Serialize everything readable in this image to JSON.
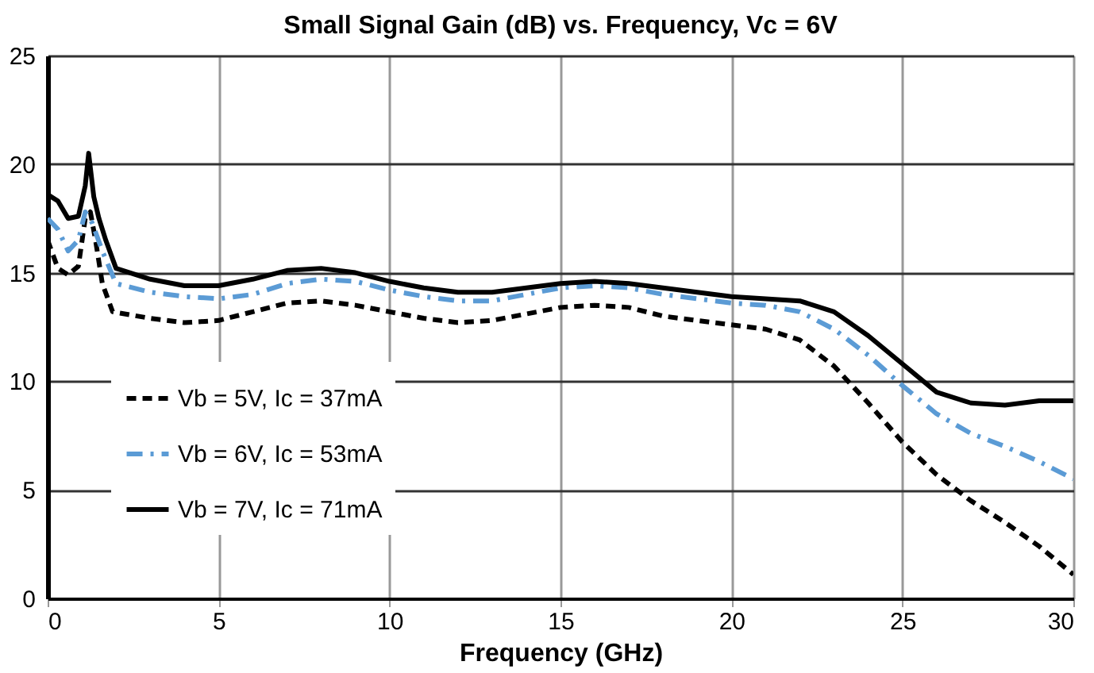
{
  "chart_data": {
    "type": "line",
    "title": "Small Signal Gain (dB) vs. Frequency, Vc = 6V",
    "xlabel": "Frequency (GHz)",
    "xlim": [
      0,
      30
    ],
    "xticks": [
      0,
      5,
      10,
      15,
      20,
      25,
      30
    ],
    "ylim": [
      0,
      25
    ],
    "yticks": [
      0,
      5,
      10,
      15,
      20,
      25
    ],
    "grid": true,
    "legend": "bottom left",
    "marker": "none",
    "series": [
      {
        "name": "Vb = 5V, Ic = 37mA",
        "color": "#000000",
        "line_style": "dashed",
        "x": [
          0,
          0.3,
          0.6,
          0.9,
          1.1,
          1.25,
          1.4,
          1.6,
          1.9,
          3,
          4,
          5,
          6,
          7,
          8,
          9,
          10,
          11,
          12,
          13,
          14,
          15,
          16,
          17,
          18,
          19,
          20,
          21,
          22,
          23,
          24,
          25,
          26,
          27,
          28,
          29,
          30
        ],
        "values": [
          16.5,
          15.2,
          14.9,
          15.3,
          17.5,
          17.8,
          16.5,
          14.5,
          13.2,
          12.9,
          12.7,
          12.8,
          13.2,
          13.6,
          13.7,
          13.5,
          13.2,
          12.9,
          12.7,
          12.8,
          13.1,
          13.4,
          13.5,
          13.4,
          13.0,
          12.8,
          12.6,
          12.4,
          11.9,
          10.7,
          9.0,
          7.2,
          5.7,
          4.5,
          3.5,
          2.4,
          1.1
        ]
      },
      {
        "name": "Vb = 6V, Ic = 53mA",
        "color": "#5b9bd5",
        "line_style": "dashdot",
        "x": [
          0,
          0.3,
          0.6,
          0.9,
          1.1,
          1.3,
          1.6,
          2,
          3,
          4,
          5,
          6,
          7,
          8,
          9,
          10,
          11,
          12,
          13,
          14,
          15,
          16,
          17,
          18,
          19,
          20,
          21,
          22,
          23,
          24,
          25,
          26,
          27,
          28,
          29,
          30
        ],
        "values": [
          17.5,
          17.0,
          16.0,
          16.5,
          17.8,
          17.3,
          16.0,
          14.5,
          14.1,
          13.9,
          13.8,
          14.0,
          14.5,
          14.7,
          14.6,
          14.2,
          13.9,
          13.7,
          13.7,
          14.0,
          14.3,
          14.4,
          14.3,
          14.0,
          13.8,
          13.6,
          13.5,
          13.2,
          12.4,
          11.2,
          9.8,
          8.5,
          7.6,
          7.0,
          6.3,
          5.5
        ]
      },
      {
        "name": "Vb = 7V, Ic = 71mA",
        "color": "#000000",
        "line_style": "solid",
        "x": [
          0,
          0.3,
          0.6,
          0.9,
          1.1,
          1.2,
          1.35,
          1.5,
          1.7,
          2,
          3,
          4,
          5,
          6,
          7,
          8,
          9,
          10,
          11,
          12,
          13,
          14,
          15,
          16,
          17,
          18,
          19,
          20,
          21,
          22,
          23,
          24,
          25,
          26,
          27,
          28,
          29,
          30
        ],
        "values": [
          18.6,
          18.3,
          17.5,
          17.6,
          19.0,
          20.5,
          18.5,
          17.5,
          16.5,
          15.2,
          14.7,
          14.4,
          14.4,
          14.7,
          15.1,
          15.2,
          15.0,
          14.6,
          14.3,
          14.1,
          14.1,
          14.3,
          14.5,
          14.6,
          14.5,
          14.3,
          14.1,
          13.9,
          13.8,
          13.7,
          13.2,
          12.1,
          10.8,
          9.5,
          9.0,
          8.9,
          9.1,
          9.1
        ]
      }
    ]
  }
}
